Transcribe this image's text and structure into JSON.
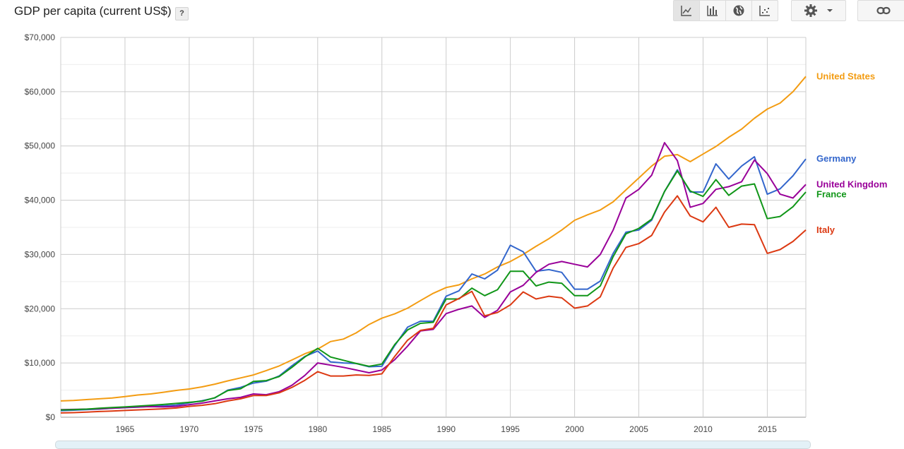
{
  "header": {
    "title": "GDP per capita (current US$)",
    "help_label": "?"
  },
  "toolbar": {
    "buttons": [
      {
        "name": "line-chart-icon",
        "active": true
      },
      {
        "name": "bar-chart-icon",
        "active": false
      },
      {
        "name": "map-icon",
        "active": false
      },
      {
        "name": "scatter-chart-icon",
        "active": false
      }
    ],
    "settings_icon": "gear-icon",
    "dropdown_icon": "caret-down-icon",
    "link_icon": "link-icon"
  },
  "chart_data": {
    "type": "line",
    "title": "GDP per capita (current US$)",
    "xlabel": "",
    "ylabel": "",
    "xlim": [
      1960,
      2018
    ],
    "ylim": [
      0,
      70000
    ],
    "x_ticks": [
      1965,
      1970,
      1975,
      1980,
      1985,
      1990,
      1995,
      2000,
      2005,
      2010,
      2015
    ],
    "x_tick_labels": [
      "1965",
      "1970",
      "1975",
      "1980",
      "1985",
      "1990",
      "1995",
      "2000",
      "2005",
      "2010",
      "2015"
    ],
    "y_ticks": [
      0,
      10000,
      20000,
      30000,
      40000,
      50000,
      60000,
      70000
    ],
    "y_tick_labels": [
      "$0",
      "$10,000",
      "$20,000",
      "$30,000",
      "$40,000",
      "$50,000",
      "$60,000",
      "$70,000"
    ],
    "grid": true,
    "legend": "right, labels at line ends",
    "x": [
      1960,
      1961,
      1962,
      1963,
      1964,
      1965,
      1966,
      1967,
      1968,
      1969,
      1970,
      1971,
      1972,
      1973,
      1974,
      1975,
      1976,
      1977,
      1978,
      1979,
      1980,
      1981,
      1982,
      1983,
      1984,
      1985,
      1986,
      1987,
      1988,
      1989,
      1990,
      1991,
      1992,
      1993,
      1994,
      1995,
      1996,
      1997,
      1998,
      1999,
      2000,
      2001,
      2002,
      2003,
      2004,
      2005,
      2006,
      2007,
      2008,
      2009,
      2010,
      2011,
      2012,
      2013,
      2014,
      2015,
      2016,
      2017,
      2018
    ],
    "series": [
      {
        "name": "United States",
        "color": "#f39c12",
        "values": [
          3000,
          3100,
          3250,
          3400,
          3550,
          3800,
          4100,
          4300,
          4600,
          4950,
          5200,
          5600,
          6100,
          6700,
          7250,
          7800,
          8600,
          9450,
          10550,
          11700,
          12550,
          13950,
          14400,
          15550,
          17100,
          18250,
          19050,
          20100,
          21500,
          22850,
          23900,
          24400,
          25500,
          26400,
          27700,
          28700,
          30000,
          31500,
          32900,
          34500,
          36300,
          37300,
          38200,
          39700,
          41900,
          44100,
          46300,
          48100,
          48400,
          47100,
          48500,
          49900,
          51600,
          53100,
          55100,
          56800,
          57900,
          60000,
          62800
        ]
      },
      {
        "name": "Germany",
        "color": "#3366cc",
        "values": [
          1200,
          1300,
          1400,
          1500,
          1650,
          1750,
          1850,
          2000,
          2100,
          2250,
          2650,
          3050,
          3550,
          5000,
          5500,
          6300,
          6650,
          7600,
          9500,
          11200,
          12200,
          10200,
          10000,
          9900,
          9300,
          9400,
          13200,
          16600,
          17700,
          17700,
          22300,
          23300,
          26400,
          25500,
          27100,
          31700,
          30500,
          26900,
          27200,
          26700,
          23600,
          23600,
          25100,
          30200,
          34100,
          34500,
          36300,
          41600,
          45600,
          41500,
          41500,
          46700,
          43900,
          46300,
          48000,
          41100,
          42100,
          44500,
          47600
        ]
      },
      {
        "name": "United Kingdom",
        "color": "#990099",
        "values": [
          1400,
          1450,
          1500,
          1550,
          1650,
          1800,
          1900,
          1950,
          1900,
          2000,
          2300,
          2600,
          3000,
          3400,
          3650,
          4300,
          4150,
          4700,
          5900,
          7700,
          10000,
          9600,
          9200,
          8700,
          8200,
          8700,
          10600,
          13100,
          15900,
          16200,
          19100,
          19900,
          20500,
          18400,
          19700,
          23100,
          24300,
          26700,
          28200,
          28700,
          28200,
          27700,
          30000,
          34500,
          40400,
          42000,
          44600,
          50600,
          47300,
          38700,
          39400,
          42000,
          42500,
          43400,
          47400,
          44900,
          41100,
          40400,
          42900
        ]
      },
      {
        "name": "France",
        "color": "#109618",
        "values": [
          1350,
          1400,
          1500,
          1650,
          1800,
          1900,
          2050,
          2200,
          2350,
          2550,
          2750,
          2950,
          3600,
          4900,
          5250,
          6600,
          6750,
          7500,
          9200,
          11100,
          12700,
          11100,
          10500,
          9900,
          9400,
          9800,
          13400,
          16100,
          17300,
          17500,
          21800,
          21800,
          23800,
          22400,
          23500,
          26900,
          26900,
          24200,
          24900,
          24700,
          22400,
          22400,
          24200,
          29600,
          33800,
          34800,
          36500,
          41600,
          45400,
          41700,
          40700,
          43800,
          40900,
          42600,
          43000,
          36600,
          37000,
          38800,
          41500
        ]
      },
      {
        "name": "Italy",
        "color": "#dc3912",
        "values": [
          800,
          850,
          950,
          1050,
          1150,
          1250,
          1350,
          1450,
          1550,
          1700,
          2000,
          2200,
          2500,
          3000,
          3400,
          4000,
          4000,
          4500,
          5500,
          6800,
          8400,
          7600,
          7600,
          7800,
          7700,
          8000,
          11200,
          14200,
          16000,
          16400,
          20700,
          21900,
          23200,
          18700,
          19300,
          20700,
          23100,
          21800,
          22300,
          22000,
          20100,
          20500,
          22200,
          27500,
          31300,
          32000,
          33500,
          37800,
          40800,
          37100,
          36000,
          38700,
          35000,
          35600,
          35500,
          30200,
          30900,
          32400,
          34500
        ]
      }
    ]
  }
}
